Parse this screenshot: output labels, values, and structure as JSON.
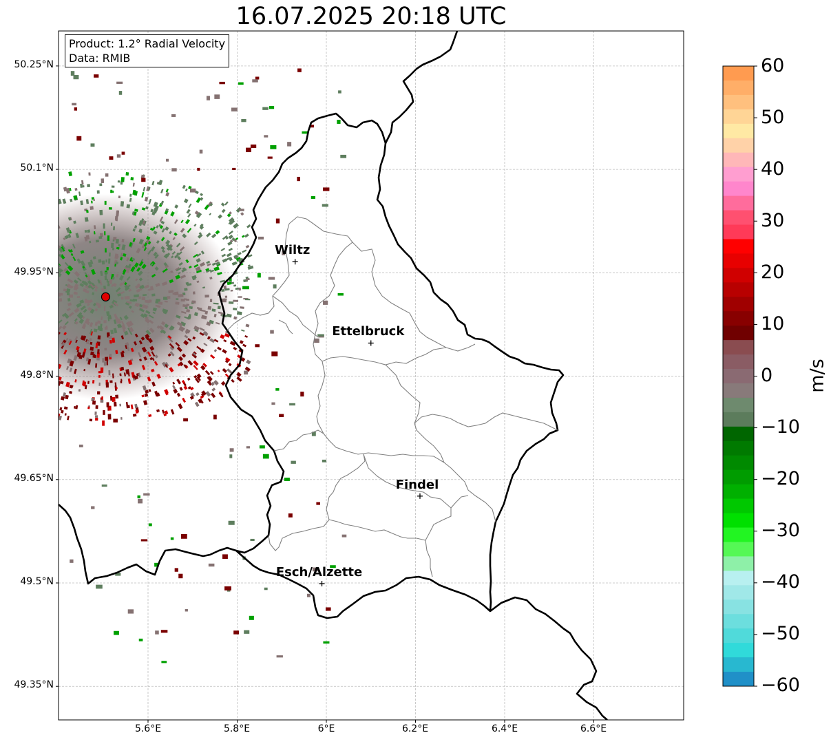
{
  "title": "16.07.2025 20:18 UTC",
  "info": {
    "product": "Product: 1.2° Radial Velocity",
    "data": "Data: RMIB"
  },
  "axes": {
    "lat_ticks": [
      "50.25°N",
      "50.1°N",
      "49.95°N",
      "49.8°N",
      "49.65°N",
      "49.5°N",
      "49.35°N"
    ],
    "lon_ticks": [
      "5.6°E",
      "5.8°E",
      "6°E",
      "6.2°E",
      "6.4°E",
      "6.6°E"
    ],
    "grid": true
  },
  "cities": [
    {
      "name": "Wiltz",
      "lon": 5.93,
      "lat": 49.966
    },
    {
      "name": "Ettelbruck",
      "lon": 6.1,
      "lat": 49.848
    },
    {
      "name": "Findel",
      "lon": 6.21,
      "lat": 49.626
    },
    {
      "name": "Esch/Alzette",
      "lon": 5.99,
      "lat": 49.499
    }
  ],
  "radar_site": {
    "lon": 5.505,
    "lat": 49.915,
    "color": "#e00000"
  },
  "colorbar": {
    "unit": "m/s",
    "ticks": [
      "60",
      "50",
      "40",
      "30",
      "20",
      "10",
      "0",
      "−10",
      "−20",
      "−30",
      "−40",
      "−50",
      "−60"
    ],
    "range": [
      -60,
      60
    ],
    "colors_top_to_bottom": [
      "#ff9b50",
      "#ffae68",
      "#ffc07e",
      "#ffd596",
      "#ffe9a4",
      "#ffd2a8",
      "#ffb7b8",
      "#ff9ed0",
      "#ff86cc",
      "#ff6c9c",
      "#ff5070",
      "#ff3a58",
      "#ff0000",
      "#e80000",
      "#d00000",
      "#b80000",
      "#a00000",
      "#880000",
      "#700000",
      "#8a4c50",
      "#8a5c64",
      "#8a6a72",
      "#887a7a",
      "#6e8a6e",
      "#5c7c5c",
      "#006600",
      "#007a00",
      "#008a00",
      "#009c00",
      "#00b000",
      "#00c800",
      "#00e000",
      "#22f522",
      "#55f855",
      "#8ef0a8",
      "#b8f0f0",
      "#a0e8e8",
      "#88e2e2",
      "#6cdede",
      "#50dada",
      "#30dada",
      "#28b8d0",
      "#2090c8"
    ]
  },
  "echo_colors": {
    "approaching": "#00a000",
    "zero_green": "#5e7e5e",
    "zero_gray": "#857272",
    "receding": "#7a0000",
    "receding_red": "#d00000"
  }
}
